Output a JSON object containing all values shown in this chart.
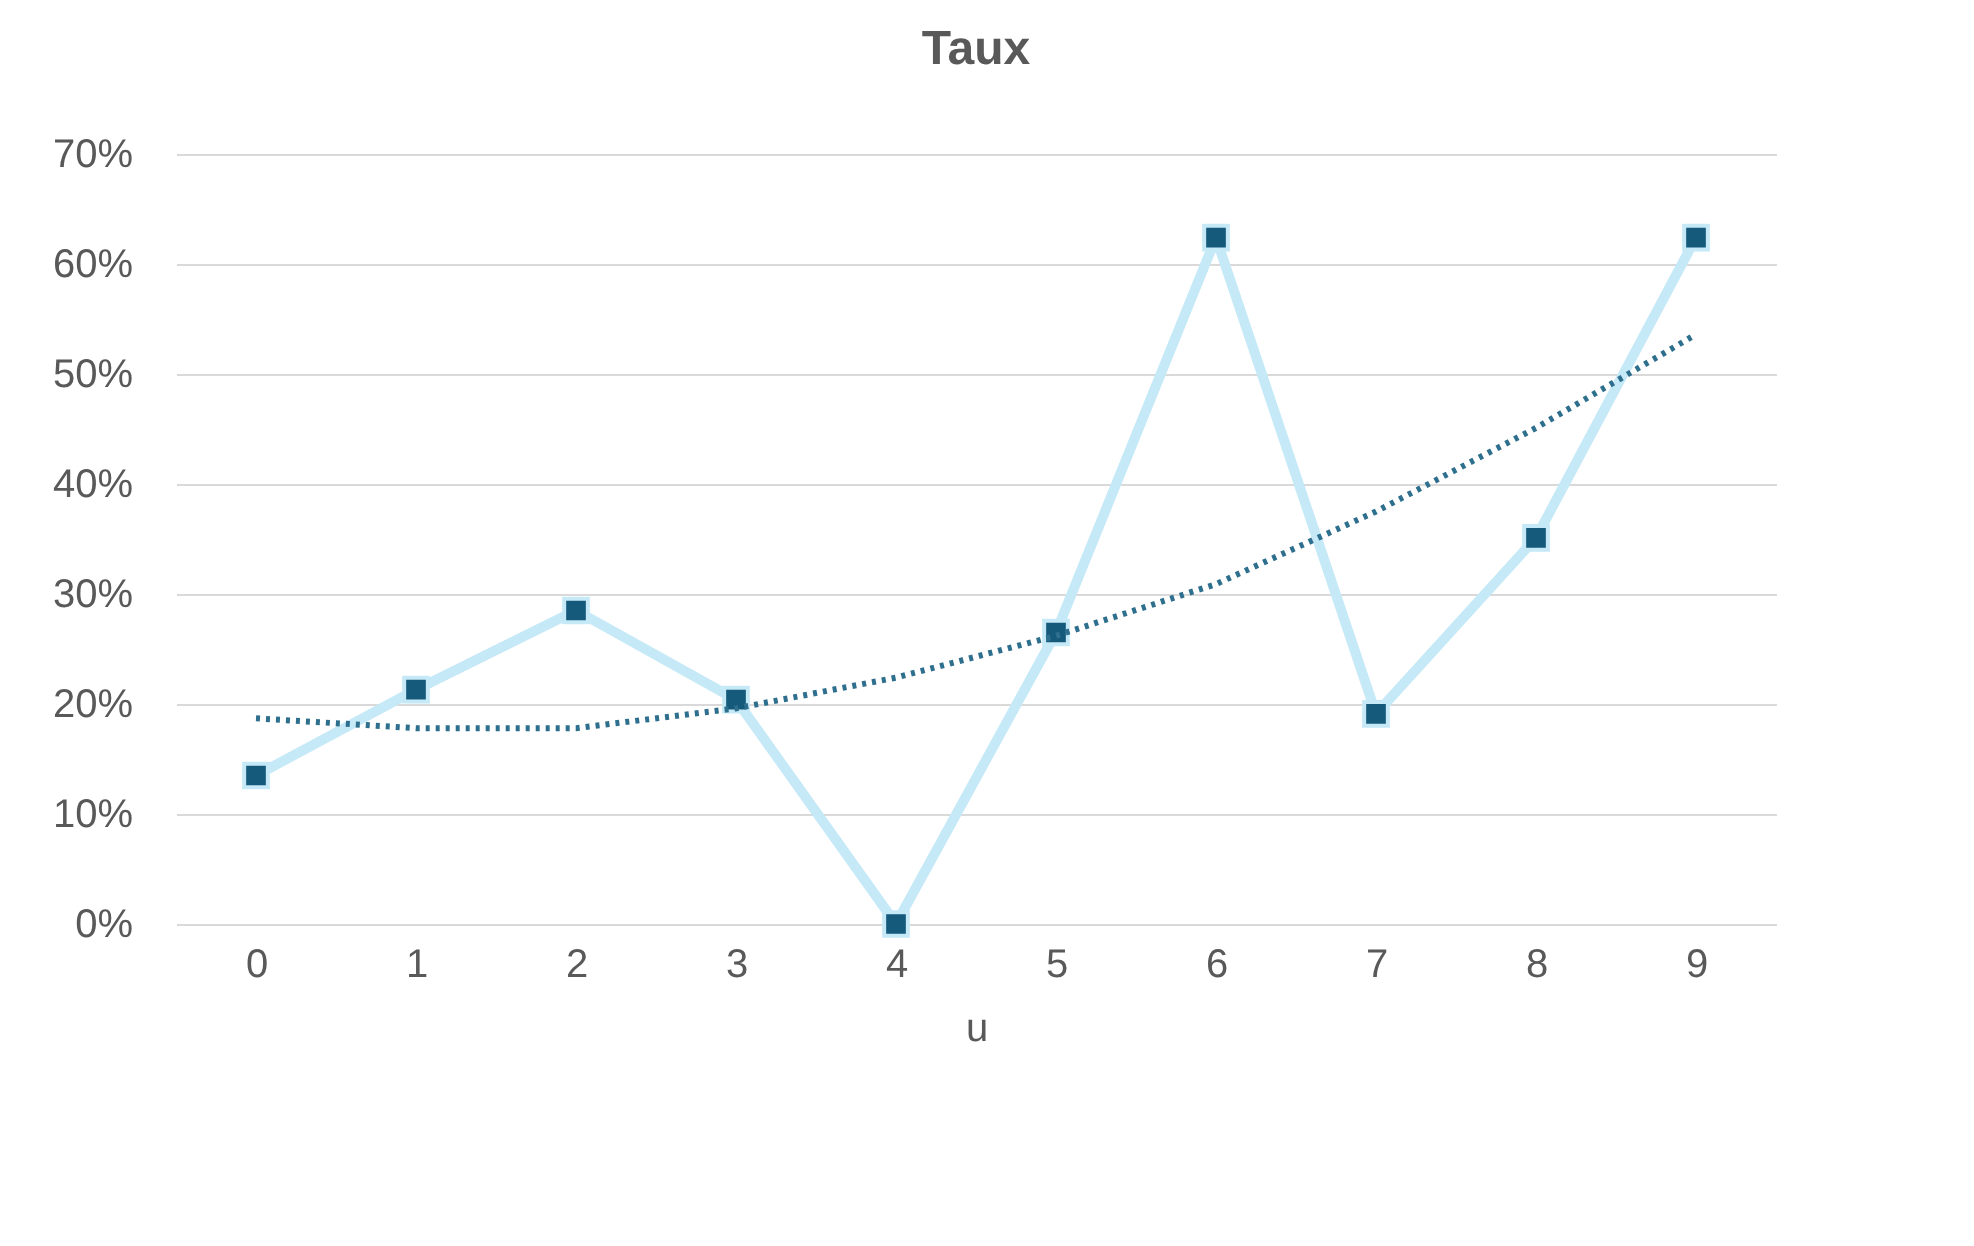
{
  "chart_data": {
    "type": "line",
    "title": "Taux",
    "xlabel": "u",
    "categories": [
      "0",
      "1",
      "2",
      "3",
      "4",
      "5",
      "6",
      "7",
      "8",
      "9"
    ],
    "series": [
      {
        "color": "#c6e9f8",
        "marker": "square",
        "values": [
          13.5,
          21.3,
          28.5,
          20.4,
          0,
          26.5,
          62.4,
          19.1,
          35.1,
          62.4
        ]
      },
      {
        "color": "#2e6f8e",
        "marker": "none",
        "line_style": "dotted",
        "values": [
          18.7,
          17.8,
          17.8,
          19.6,
          22.4,
          26.2,
          30.9,
          37.5,
          45.1,
          53.6
        ]
      }
    ],
    "ylim": [
      0,
      70
    ],
    "yticks": [
      {
        "value": 0,
        "label": "0%"
      },
      {
        "value": 10,
        "label": "10%"
      },
      {
        "value": 20,
        "label": "20%"
      },
      {
        "value": 30,
        "label": "30%"
      },
      {
        "value": 40,
        "label": "40%"
      },
      {
        "value": 50,
        "label": "50%"
      },
      {
        "value": 60,
        "label": "60%"
      },
      {
        "value": 70,
        "label": "70%"
      }
    ],
    "grid": "y",
    "legend": false
  }
}
